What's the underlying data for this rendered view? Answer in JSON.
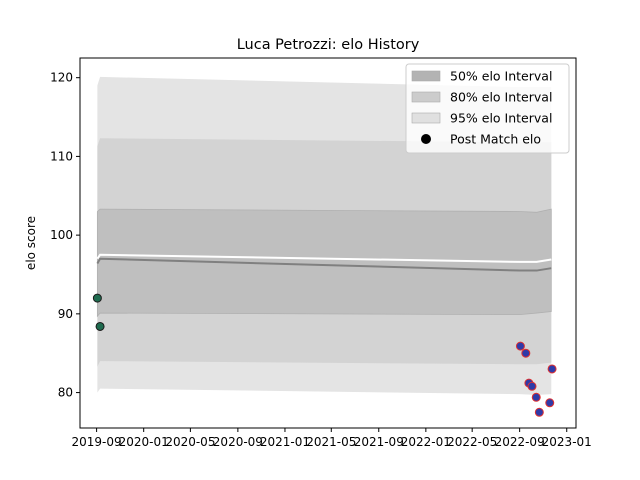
{
  "chart_data": {
    "type": "line",
    "title": "Luca Petrozzi: elo History",
    "xlabel": "",
    "ylabel": "elo score",
    "xlim": [
      "2019-07-20",
      "2023-01-25"
    ],
    "ylim": [
      75.5,
      122.5
    ],
    "x_ticks": [
      "2019-09",
      "2020-01",
      "2020-05",
      "2020-09",
      "2021-01",
      "2021-05",
      "2021-09",
      "2022-01",
      "2022-05",
      "2022-09",
      "2023-01"
    ],
    "y_ticks": [
      80,
      90,
      100,
      110,
      120
    ],
    "grid": false,
    "legend_position": "top-right",
    "legend": [
      "50% elo Interval",
      "80% elo Interval",
      "95% elo Interval",
      "Post Match elo"
    ],
    "bands": {
      "x": [
        "2019-09-03",
        "2019-09-10",
        "2022-09-01",
        "2022-10-15",
        "2022-11-22"
      ],
      "p95": {
        "lower": [
          80.0,
          80.5,
          79.8,
          79.7,
          79.8
        ],
        "upper": [
          119.0,
          120.1,
          118.8,
          118.8,
          118.8
        ]
      },
      "p80": {
        "lower": [
          83.3,
          84.0,
          83.6,
          83.6,
          83.8
        ],
        "upper": [
          111.3,
          112.3,
          111.8,
          111.8,
          111.8
        ]
      },
      "p50": {
        "lower": [
          89.7,
          90.1,
          89.9,
          90.1,
          90.3
        ],
        "upper": [
          103.0,
          103.3,
          103.0,
          102.9,
          103.3
        ]
      }
    },
    "mean_line": {
      "x": [
        "2019-09-03",
        "2019-09-10",
        "2022-09-01",
        "2022-10-15",
        "2022-11-22"
      ],
      "values": [
        96.4,
        97.0,
        95.5,
        95.5,
        95.8
      ]
    },
    "upper_line": {
      "x": [
        "2019-09-03",
        "2019-09-10",
        "2022-09-01",
        "2022-10-15",
        "2022-11-22"
      ],
      "values": [
        97.0,
        97.5,
        96.6,
        96.6,
        96.9
      ]
    },
    "post_match_elo": [
      {
        "date": "2019-09-03",
        "value": 92.0,
        "style": "green"
      },
      {
        "date": "2019-09-10",
        "value": 88.4,
        "style": "green"
      },
      {
        "date": "2022-09-03",
        "value": 85.9,
        "style": "blue"
      },
      {
        "date": "2022-09-17",
        "value": 85.0,
        "style": "blue"
      },
      {
        "date": "2022-09-25",
        "value": 81.2,
        "style": "blue"
      },
      {
        "date": "2022-10-03",
        "value": 80.8,
        "style": "blue"
      },
      {
        "date": "2022-10-14",
        "value": 79.4,
        "style": "blue"
      },
      {
        "date": "2022-10-22",
        "value": 77.5,
        "style": "blue"
      },
      {
        "date": "2022-11-18",
        "value": 78.7,
        "style": "blue"
      },
      {
        "date": "2022-11-24",
        "value": 83.0,
        "style": "blue"
      }
    ],
    "colors": {
      "p95": "#e4e4e4",
      "p80": "#d3d3d3",
      "p50": "#bfbfbf",
      "mean_line": "#808080",
      "upper_line": "#ffffff",
      "green_fill": "#1f6b4f",
      "green_edge": "#1a1a1a",
      "blue_fill": "#2f3aa8",
      "blue_edge": "#e03030",
      "legend_p50": "#b3b3b3",
      "legend_p80": "#cccccc",
      "legend_p95": "#e0e0e0",
      "legend_marker": "#000000"
    }
  }
}
